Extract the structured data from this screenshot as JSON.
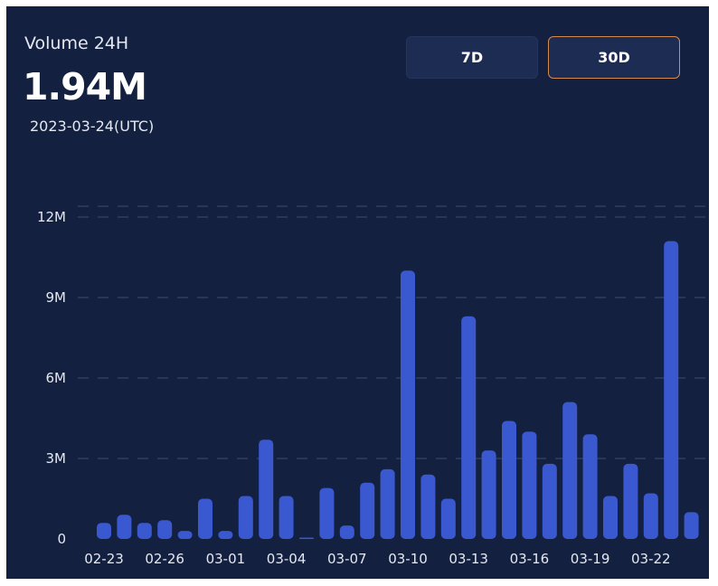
{
  "header": {
    "title": "Volume 24H",
    "value": "1.94M",
    "date": "2023-03-24(UTC)"
  },
  "range_buttons": [
    {
      "label": "7D",
      "active": false
    },
    {
      "label": "30D",
      "active": true
    }
  ],
  "colors": {
    "background": "#13203f",
    "bar": "#3a59d0",
    "active_border": "#d48a4c",
    "grid": "#2e3d62"
  },
  "chart_data": {
    "type": "bar",
    "categories": [
      "02-23",
      "02-24",
      "02-25",
      "02-26",
      "02-27",
      "02-28",
      "03-01",
      "03-02",
      "03-03",
      "03-04",
      "03-05",
      "03-06",
      "03-07",
      "03-08",
      "03-09",
      "03-10",
      "03-11",
      "03-12",
      "03-13",
      "03-14",
      "03-15",
      "03-16",
      "03-17",
      "03-18",
      "03-19",
      "03-20",
      "03-21",
      "03-22",
      "03-23",
      "03-24"
    ],
    "values": [
      0.6,
      0.9,
      0.6,
      0.7,
      0.3,
      1.5,
      0.3,
      1.6,
      3.7,
      1.6,
      0.05,
      1.9,
      0.5,
      2.1,
      2.6,
      10.0,
      2.4,
      1.5,
      8.3,
      3.3,
      4.4,
      4.0,
      2.8,
      5.1,
      3.9,
      1.6,
      2.8,
      1.7,
      11.1,
      1.0
    ],
    "y_ticks": [
      {
        "value": 0,
        "label": "0"
      },
      {
        "value": 3,
        "label": "3M"
      },
      {
        "value": 6,
        "label": "6M"
      },
      {
        "value": 9,
        "label": "9M"
      },
      {
        "value": 12,
        "label": "12M"
      }
    ],
    "x_tick_labels": [
      "02-23",
      "02-26",
      "03-01",
      "03-04",
      "03-07",
      "03-10",
      "03-13",
      "03-16",
      "03-19",
      "03-22"
    ],
    "x_tick_every": 3,
    "ylim": [
      0,
      13.25
    ],
    "unit": "M",
    "grid": true
  }
}
